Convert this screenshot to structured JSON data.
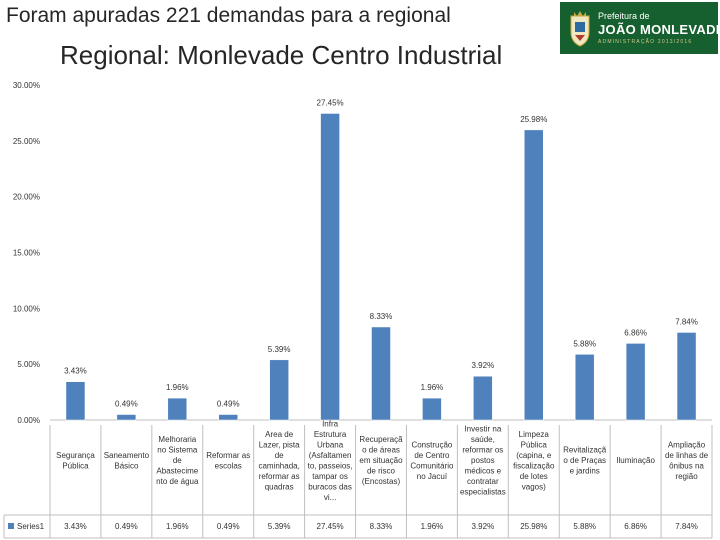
{
  "header": {
    "title": "Foram apuradas 221 demandas para a regional",
    "subtitle": "Regional: Monlevade Centro Industrial"
  },
  "logo": {
    "line1": "Prefeitura de",
    "line2": "JOÃO MONLEVADE",
    "line3": "ADMINISTRAÇÃO 2013/2016",
    "color": "#16602f"
  },
  "chart_data": {
    "type": "bar",
    "title": "",
    "xlabel": "",
    "ylabel": "",
    "ylim": [
      0,
      30
    ],
    "y_ticks": [
      "0.00%",
      "5.00%",
      "10.00%",
      "15.00%",
      "20.00%",
      "25.00%",
      "30.00%"
    ],
    "grid": false,
    "legend": "data-table",
    "bar_color": "#4f81bd",
    "categories": [
      [
        "Segurança",
        "Pública"
      ],
      [
        "Saneamento",
        "Básico"
      ],
      [
        "Melhoraria",
        "no Sistema",
        "de",
        "Abasteci­me",
        "nto de água"
      ],
      [
        "Reformar as",
        "escolas"
      ],
      [
        "Area de",
        "Lazer, pista",
        "de",
        "caminhada,",
        "reformar as",
        "quadras"
      ],
      [
        "Infra",
        "Estrutura",
        "Urbana",
        "(Asfaltamen",
        "to, passeios,",
        "tampar os",
        "buracos das",
        "vi..."
      ],
      [
        "Recuperaçã",
        "o de áreas",
        "em situação",
        "de risco",
        "(Encostas)"
      ],
      [
        "Construção",
        "de Centro",
        "Comunitário",
        "no Jacuí"
      ],
      [
        "Investir na",
        "saúde,",
        "reformar os",
        "postos",
        "médicos e",
        "contratar",
        "especialistas"
      ],
      [
        "Limpeza",
        "Pública",
        "(capina, e",
        "fiscalização",
        "de lotes",
        "vagos)"
      ],
      [
        "Revitalizaçã",
        "o de Praças",
        "e jardins"
      ],
      [
        "Iluminação"
      ],
      [
        "Ampliação",
        "de linhas de",
        "ônibus na",
        "região"
      ]
    ],
    "series": [
      {
        "name": "Series1",
        "values": [
          3.43,
          0.49,
          1.96,
          0.49,
          5.39,
          27.45,
          8.33,
          1.96,
          3.92,
          25.98,
          5.88,
          6.86,
          7.84
        ],
        "labels": [
          "3.43%",
          "0.49%",
          "1.96%",
          "0.49%",
          "5.39%",
          "27.45%",
          "8.33%",
          "1.96%",
          "3.92%",
          "25.98%",
          "5.88%",
          "6.86%",
          "7.84%"
        ]
      }
    ]
  }
}
